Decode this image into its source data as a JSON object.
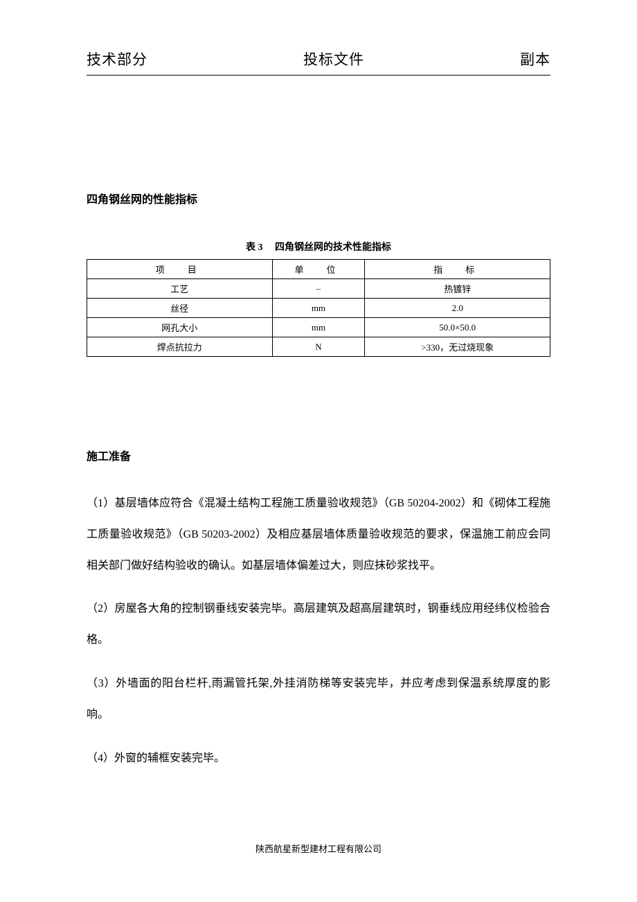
{
  "header": {
    "left": "技术部分",
    "center": "投标文件",
    "right": "副本"
  },
  "section1": {
    "heading": "四角钢丝网的性能指标"
  },
  "table": {
    "caption": "表 3　 四角钢丝网的技术性能指标",
    "columns": [
      "项　目",
      "单　位",
      "指　标"
    ],
    "rows": [
      [
        "工艺",
        "–",
        "热镀锌"
      ],
      [
        "丝径",
        "mm",
        "2.0"
      ],
      [
        "网孔大小",
        "mm",
        "50.0×50.0"
      ],
      [
        "焊点抗拉力",
        "N",
        ">330，无过烧现象"
      ]
    ]
  },
  "section2": {
    "heading": "施工准备"
  },
  "paragraphs": {
    "p1": "（1）基层墙体应符合《混凝土结构工程施工质量验收规范》（GB 50204-2002）和《砌体工程施工质量验收规范》（GB 50203-2002）及相应基层墙体质量验收规范的要求，保温施工前应会同相关部门做好结构验收的确认。如基层墙体偏差过大，则应抹砂浆找平。",
    "p2": "（2）房屋各大角的控制钢垂线安装完毕。高层建筑及超高层建筑时，钢垂线应用经纬仪检验合格。",
    "p3": "（3）外墙面的阳台栏杆,雨漏管托架,外挂消防梯等安装完毕，并应考虑到保温系统厚度的影响。",
    "p4": "（4）外窗的辅框安装完毕。"
  },
  "footer": {
    "text": "陕西航星新型建材工程有限公司"
  }
}
